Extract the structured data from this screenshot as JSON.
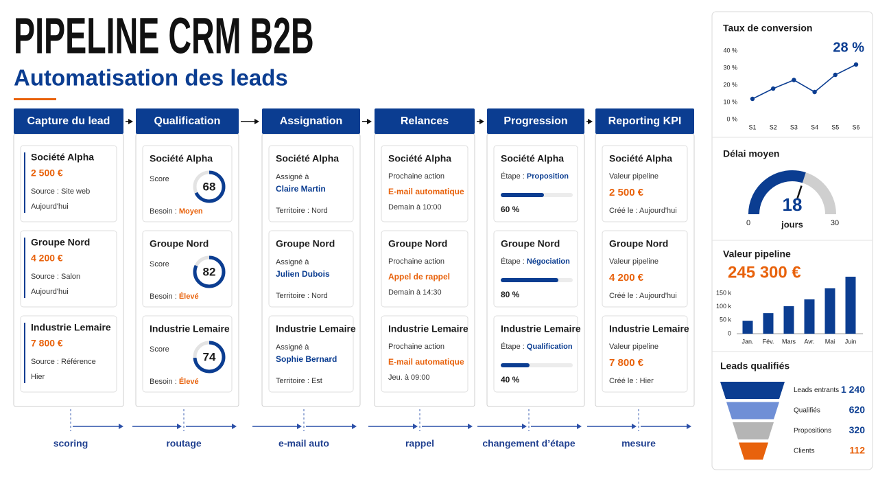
{
  "header": {
    "title": "PIPELINE CRM B2B",
    "subtitle": "Automatisation des leads"
  },
  "columns": [
    {
      "title": "Capture du lead",
      "cards": [
        {
          "name": "Société Alpha",
          "amount": "2 500 €",
          "source": "Source : Site web",
          "date": "Aujourd'hui"
        },
        {
          "name": "Groupe Nord",
          "amount": "4 200 €",
          "source": "Source : Salon",
          "date": "Aujourd'hui"
        },
        {
          "name": "Industrie Lemaire",
          "amount": "7 800 €",
          "source": "Source : Référence",
          "date": "Hier"
        }
      ]
    },
    {
      "title": "Qualification",
      "cards": [
        {
          "name": "Société Alpha",
          "score_label": "Score",
          "score": 68,
          "need_label": "Besoin : ",
          "need": "Moyen"
        },
        {
          "name": "Groupe Nord",
          "score_label": "Score",
          "score": 82,
          "need_label": "Besoin : ",
          "need": "Élevé"
        },
        {
          "name": "Industrie Lemaire",
          "score_label": "Score",
          "score": 74,
          "need_label": "Besoin : ",
          "need": "Élevé"
        }
      ]
    },
    {
      "title": "Assignation",
      "cards": [
        {
          "name": "Société Alpha",
          "label": "Assigné à",
          "person": "Claire Martin",
          "territory": "Territoire : Nord"
        },
        {
          "name": "Groupe Nord",
          "label": "Assigné à",
          "person": "Julien Dubois",
          "territory": "Territoire : Nord"
        },
        {
          "name": "Industrie Lemaire",
          "label": "Assigné à",
          "person": "Sophie Bernard",
          "territory": "Territoire : Est"
        }
      ]
    },
    {
      "title": "Relances",
      "cards": [
        {
          "name": "Société Alpha",
          "label": "Prochaine action",
          "action": "E-mail automatique",
          "when": "Demain à 10:00"
        },
        {
          "name": "Groupe Nord",
          "label": "Prochaine action",
          "action": "Appel de rappel",
          "when": "Demain à 14:30"
        },
        {
          "name": "Industrie Lemaire",
          "label": "Prochaine action",
          "action": "E-mail automatique",
          "when": "Jeu. à 09:00"
        }
      ]
    },
    {
      "title": "Progression",
      "cards": [
        {
          "name": "Société Alpha",
          "stage_label": "Étape : ",
          "stage": "Proposition",
          "progress": 60,
          "progress_label": "60 %"
        },
        {
          "name": "Groupe Nord",
          "stage_label": "Étape : ",
          "stage": "Négociation",
          "progress": 80,
          "progress_label": "80 %"
        },
        {
          "name": "Industrie Lemaire",
          "stage_label": "Étape : ",
          "stage": "Qualification",
          "progress": 40,
          "progress_label": "40 %"
        }
      ]
    },
    {
      "title": "Reporting KPI",
      "cards": [
        {
          "name": "Société Alpha",
          "label": "Valeur pipeline",
          "value": "2 500 €",
          "created": "Créé le : Aujourd'hui"
        },
        {
          "name": "Groupe Nord",
          "label": "Valeur pipeline",
          "value": "4 200 €",
          "created": "Créé le : Aujourd'hui"
        },
        {
          "name": "Industrie Lemaire",
          "label": "Valeur pipeline",
          "value": "7 800 €",
          "created": "Créé le : Hier"
        }
      ]
    }
  ],
  "flows": [
    "scoring",
    "routage",
    "e-mail auto",
    "rappel",
    "changement d’étape",
    "mesure"
  ],
  "chart_data": [
    {
      "type": "line",
      "title": "Taux de conversion",
      "kpi_label": "28 %",
      "color": "#0b3d91",
      "categories": [
        "S1",
        "S2",
        "S3",
        "S4",
        "S5",
        "S6"
      ],
      "values": [
        12,
        18,
        23,
        16,
        26,
        32
      ],
      "ylim": [
        0,
        40
      ],
      "yticks": [
        {
          "value": 0,
          "label": "0 %"
        },
        {
          "value": 10,
          "label": "10 %"
        },
        {
          "value": 20,
          "label": "20 %"
        },
        {
          "value": 30,
          "label": "30 %"
        },
        {
          "value": 40,
          "label": "40 %"
        }
      ]
    },
    {
      "type": "gauge",
      "title": "Délai moyen",
      "value": 18,
      "unit": "jours",
      "min": 0,
      "max": 30,
      "color": "#0b3d91"
    },
    {
      "type": "bar",
      "title": "Valeur pipeline",
      "total_label": "245 300 €",
      "color": "#0b3d91",
      "categories": [
        "Jan.",
        "Fév.",
        "Mars",
        "Avr.",
        "Mai",
        "Juin"
      ],
      "values": [
        48000,
        76000,
        102000,
        127000,
        168000,
        211000
      ],
      "ylim": [
        0,
        220000
      ],
      "yticks": [
        0,
        {
          "value": 50000,
          "label": "50 k"
        },
        {
          "value": 100000,
          "label": "100 k"
        },
        {
          "value": 150000,
          "label": "150 k"
        }
      ]
    },
    {
      "type": "funnel",
      "title": "Leads qualifiés",
      "categories": [
        "Leads entrants",
        "Qualifiés",
        "Propositions",
        "Clients"
      ],
      "values": [
        1240,
        620,
        320,
        112
      ],
      "value_labels": [
        "1 240",
        "620",
        "320",
        "112"
      ],
      "colors": [
        "#0b3d91",
        "#6f8fd6",
        "#b5b5b5",
        "#e8620c"
      ]
    }
  ]
}
